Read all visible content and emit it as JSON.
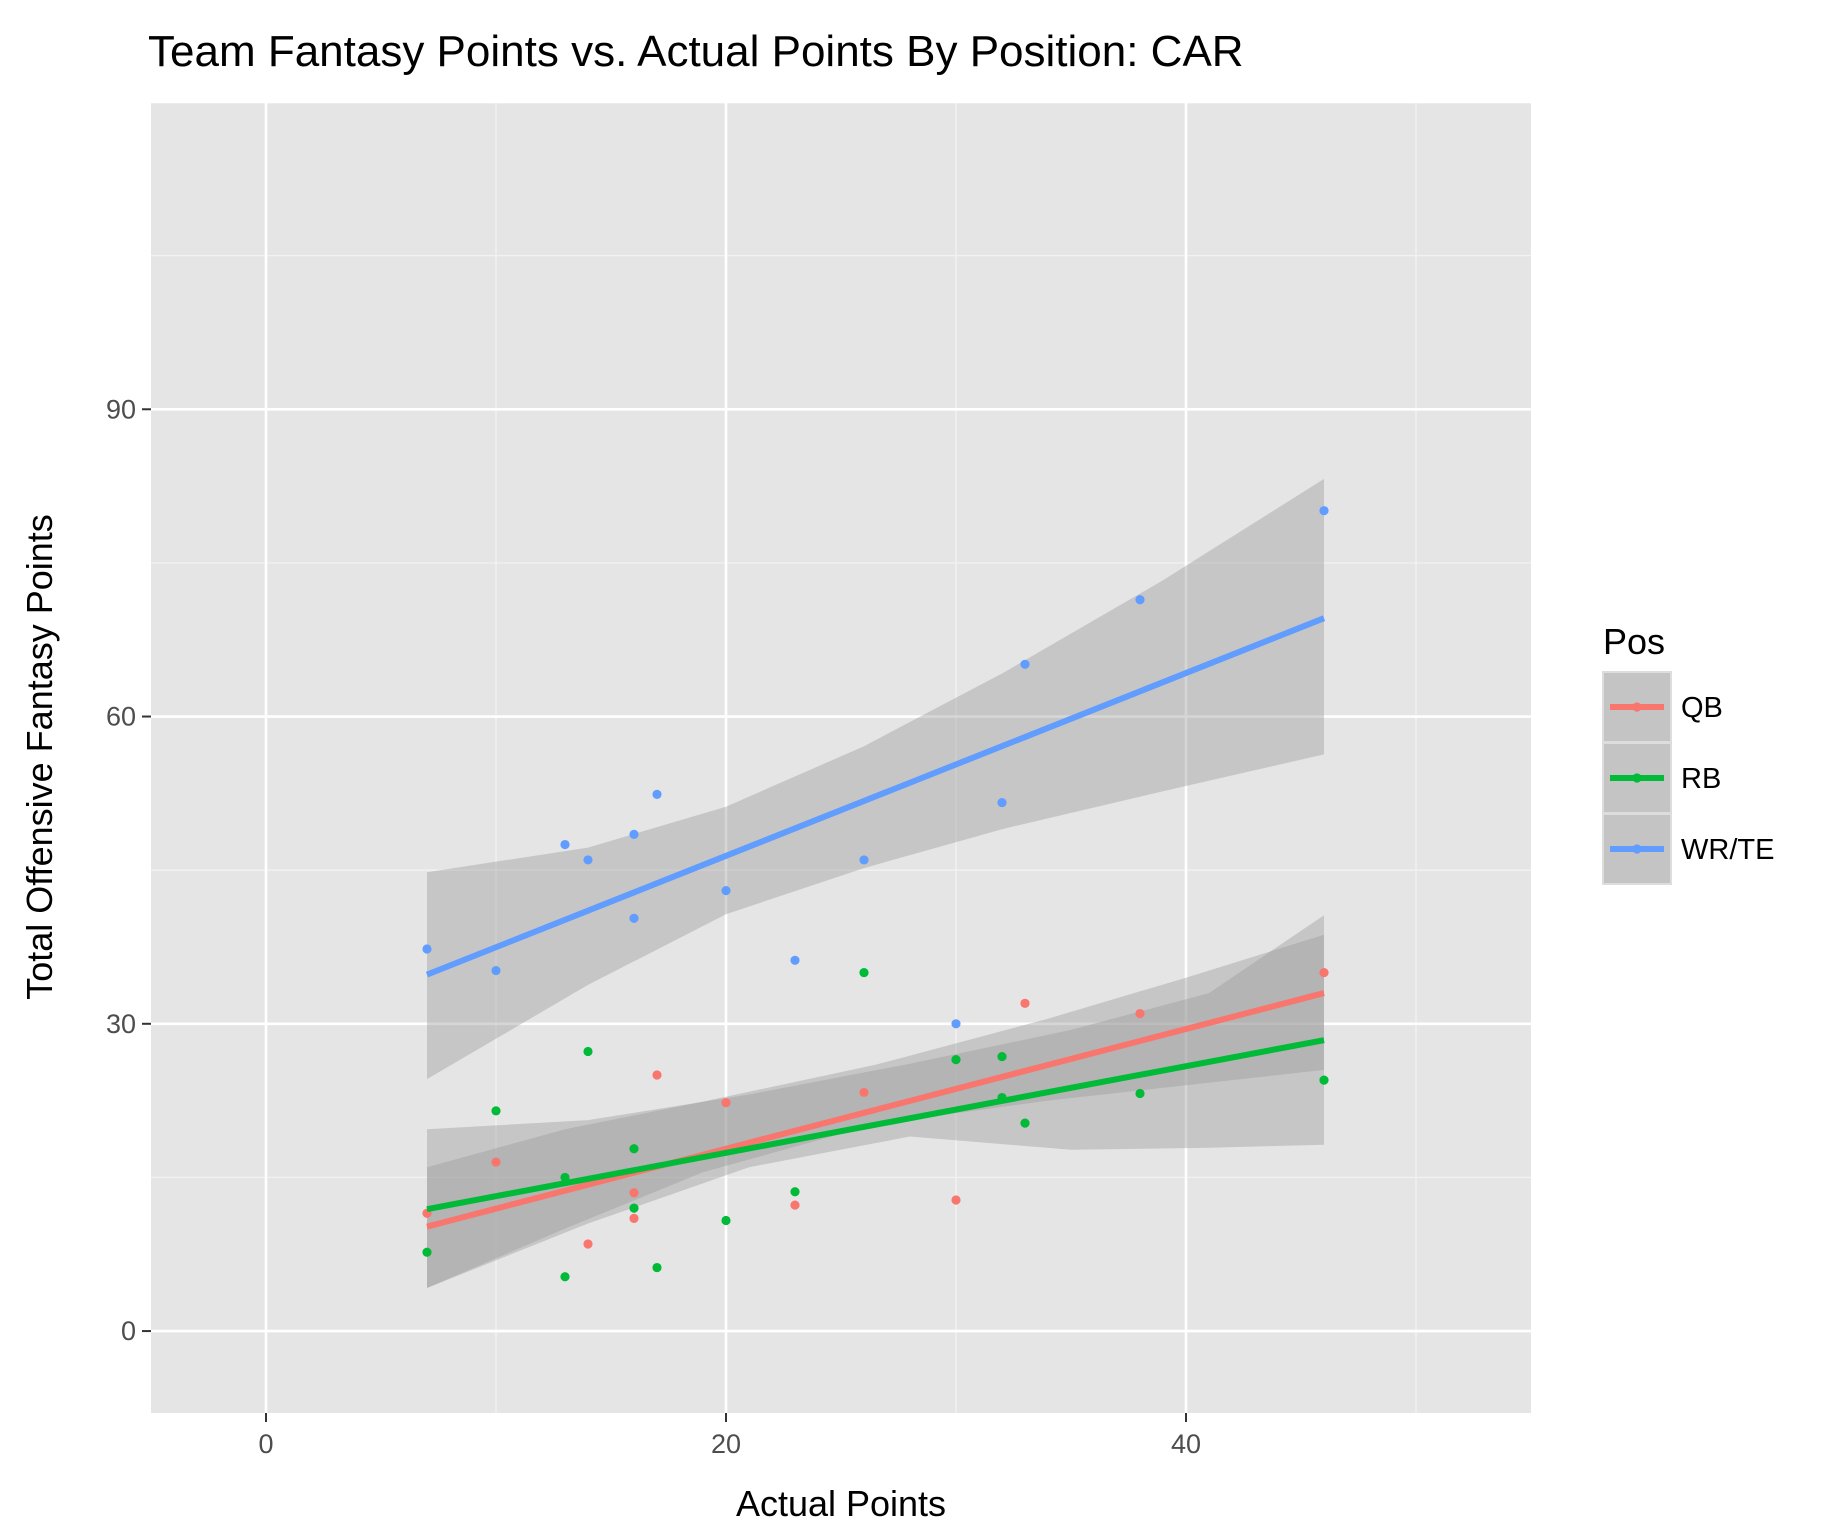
{
  "chart_data": {
    "type": "scatter",
    "title": "Team Fantasy Points vs. Actual Points By Position: CAR",
    "xlabel": "Actual Points",
    "ylabel": "Total Offensive Fantasy Points",
    "xlim": [
      -5,
      55
    ],
    "ylim": [
      -8,
      120
    ],
    "x_ticks": [
      0,
      20,
      40
    ],
    "y_ticks": [
      0,
      30,
      60,
      90
    ],
    "grid": true,
    "legend": {
      "title": "Pos",
      "placement": "right",
      "entries": [
        "QB",
        "RB",
        "WR/TE"
      ]
    },
    "series": [
      {
        "name": "QB",
        "color": "#F8766D",
        "points": [
          [
            7,
            11.5
          ],
          [
            10,
            16.5
          ],
          [
            14,
            8.5
          ],
          [
            16,
            13.5
          ],
          [
            16,
            11
          ],
          [
            17,
            25
          ],
          [
            20,
            22.3
          ],
          [
            23,
            12.3
          ],
          [
            26,
            23.3
          ],
          [
            30,
            12.8
          ],
          [
            33,
            32
          ],
          [
            38,
            31
          ],
          [
            46,
            35
          ]
        ],
        "fit": {
          "start": [
            7,
            10.2
          ],
          "end": [
            46,
            33
          ]
        },
        "band": {
          "x": [
            7,
            13,
            19,
            26.5,
            34,
            40,
            46
          ],
          "lower": [
            4.2,
            10,
            15.5,
            20.2,
            22.5,
            24,
            25.5
          ],
          "upper": [
            16,
            19.7,
            22.4,
            26,
            30.5,
            34.5,
            38.7
          ]
        }
      },
      {
        "name": "RB",
        "color": "#00BA38",
        "points": [
          [
            7,
            7.7
          ],
          [
            10,
            21.5
          ],
          [
            13,
            5.3
          ],
          [
            13,
            15
          ],
          [
            14,
            27.3
          ],
          [
            16,
            17.8
          ],
          [
            16,
            12
          ],
          [
            17,
            6.2
          ],
          [
            20,
            10.8
          ],
          [
            23,
            13.6
          ],
          [
            26,
            35
          ],
          [
            30,
            26.5
          ],
          [
            32,
            26.8
          ],
          [
            32,
            22.8
          ],
          [
            33,
            20.3
          ],
          [
            38,
            23.2
          ],
          [
            46,
            24.5
          ]
        ],
        "fit": {
          "start": [
            7,
            11.9
          ],
          "end": [
            46,
            28.4
          ]
        },
        "band": {
          "x": [
            7,
            14,
            21,
            28,
            35,
            41,
            46
          ],
          "lower": [
            4.2,
            10.5,
            16,
            19,
            17.7,
            17.9,
            18.2
          ],
          "upper": [
            19.7,
            20.6,
            23.1,
            26.1,
            29.4,
            33,
            40.6
          ]
        }
      },
      {
        "name": "WR/TE",
        "color": "#619CFF",
        "points": [
          [
            7,
            37.3
          ],
          [
            10,
            35.2
          ],
          [
            13,
            47.5
          ],
          [
            14,
            46
          ],
          [
            16,
            48.5
          ],
          [
            16,
            40.3
          ],
          [
            17,
            52.4
          ],
          [
            20,
            43
          ],
          [
            23,
            36.2
          ],
          [
            26,
            46
          ],
          [
            30,
            30
          ],
          [
            32,
            51.6
          ],
          [
            33,
            65.1
          ],
          [
            38,
            71.4
          ],
          [
            46,
            80.1
          ]
        ],
        "fit": {
          "start": [
            7,
            34.8
          ],
          "end": [
            46,
            69.6
          ]
        },
        "band": {
          "x": [
            7,
            14,
            20,
            26,
            32,
            39,
            46
          ],
          "lower": [
            24.6,
            33.8,
            40.7,
            45.2,
            49,
            52.7,
            56.3
          ],
          "upper": [
            44.8,
            47.2,
            51.2,
            57.1,
            64.2,
            73.3,
            83.2
          ]
        }
      }
    ]
  }
}
